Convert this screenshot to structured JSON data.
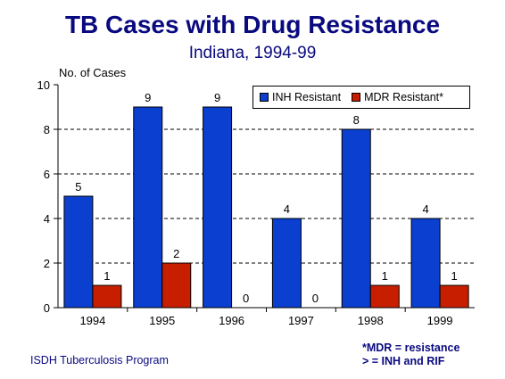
{
  "title": "TB Cases with Drug Resistance",
  "subtitle": "Indiana, 1994-99",
  "footer": {
    "program": "ISDH Tuberculosis Program",
    "footnote_line1": "*MDR = resistance",
    "footnote_line2": "> = INH and RIF"
  },
  "colors": {
    "inh": "#0a3fcf",
    "mdr": "#c81e00",
    "title": "#0a0a80"
  },
  "chart_data": {
    "type": "bar",
    "title": "TB Cases with Drug Resistance",
    "subtitle": "Indiana, 1994-99",
    "xlabel": "",
    "ylabel": "No. of Cases",
    "ylim": [
      0,
      10
    ],
    "yticks": [
      0,
      2,
      4,
      6,
      8,
      10
    ],
    "grid": true,
    "legend_position": "top-right",
    "categories": [
      "1994",
      "1995",
      "1996",
      "1997",
      "1998",
      "1999"
    ],
    "series": [
      {
        "name": "INH Resistant",
        "values": [
          5,
          9,
          9,
          4,
          8,
          4
        ]
      },
      {
        "name": "MDR Resistant*",
        "values": [
          1,
          2,
          0,
          0,
          1,
          1
        ]
      }
    ]
  }
}
